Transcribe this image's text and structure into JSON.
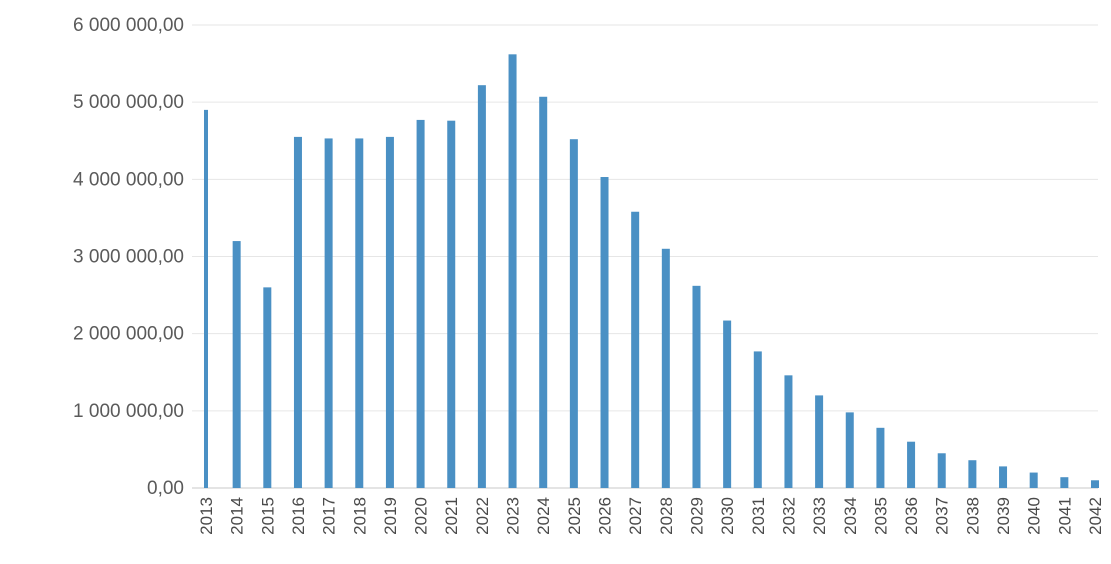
{
  "chart_data": {
    "type": "bar",
    "title": "",
    "xlabel": "",
    "ylabel": "",
    "categories": [
      "2013",
      "2014",
      "2015",
      "2016",
      "2017",
      "2018",
      "2019",
      "2020",
      "2021",
      "2022",
      "2023",
      "2024",
      "2025",
      "2026",
      "2027",
      "2028",
      "2029",
      "2030",
      "2031",
      "2032",
      "2033",
      "2034",
      "2035",
      "2036",
      "2037",
      "2038",
      "2039",
      "2040",
      "2041",
      "2042"
    ],
    "values": [
      4900000,
      3200000,
      2600000,
      4550000,
      4530000,
      4530000,
      4550000,
      4770000,
      4760000,
      5220000,
      5620000,
      5070000,
      4520000,
      4030000,
      3580000,
      3100000,
      2620000,
      2170000,
      1770000,
      1460000,
      1200000,
      980000,
      780000,
      600000,
      450000,
      360000,
      280000,
      200000,
      140000,
      100000
    ],
    "ylim": [
      0,
      6000000
    ],
    "yticks": [
      "0,00",
      "1 000 000,00",
      "2 000 000,00",
      "3 000 000,00",
      "4 000 000,00",
      "5 000 000,00",
      "6 000 000,00"
    ],
    "grid": true,
    "legend": "none",
    "bar_color": "#4a90c4"
  }
}
